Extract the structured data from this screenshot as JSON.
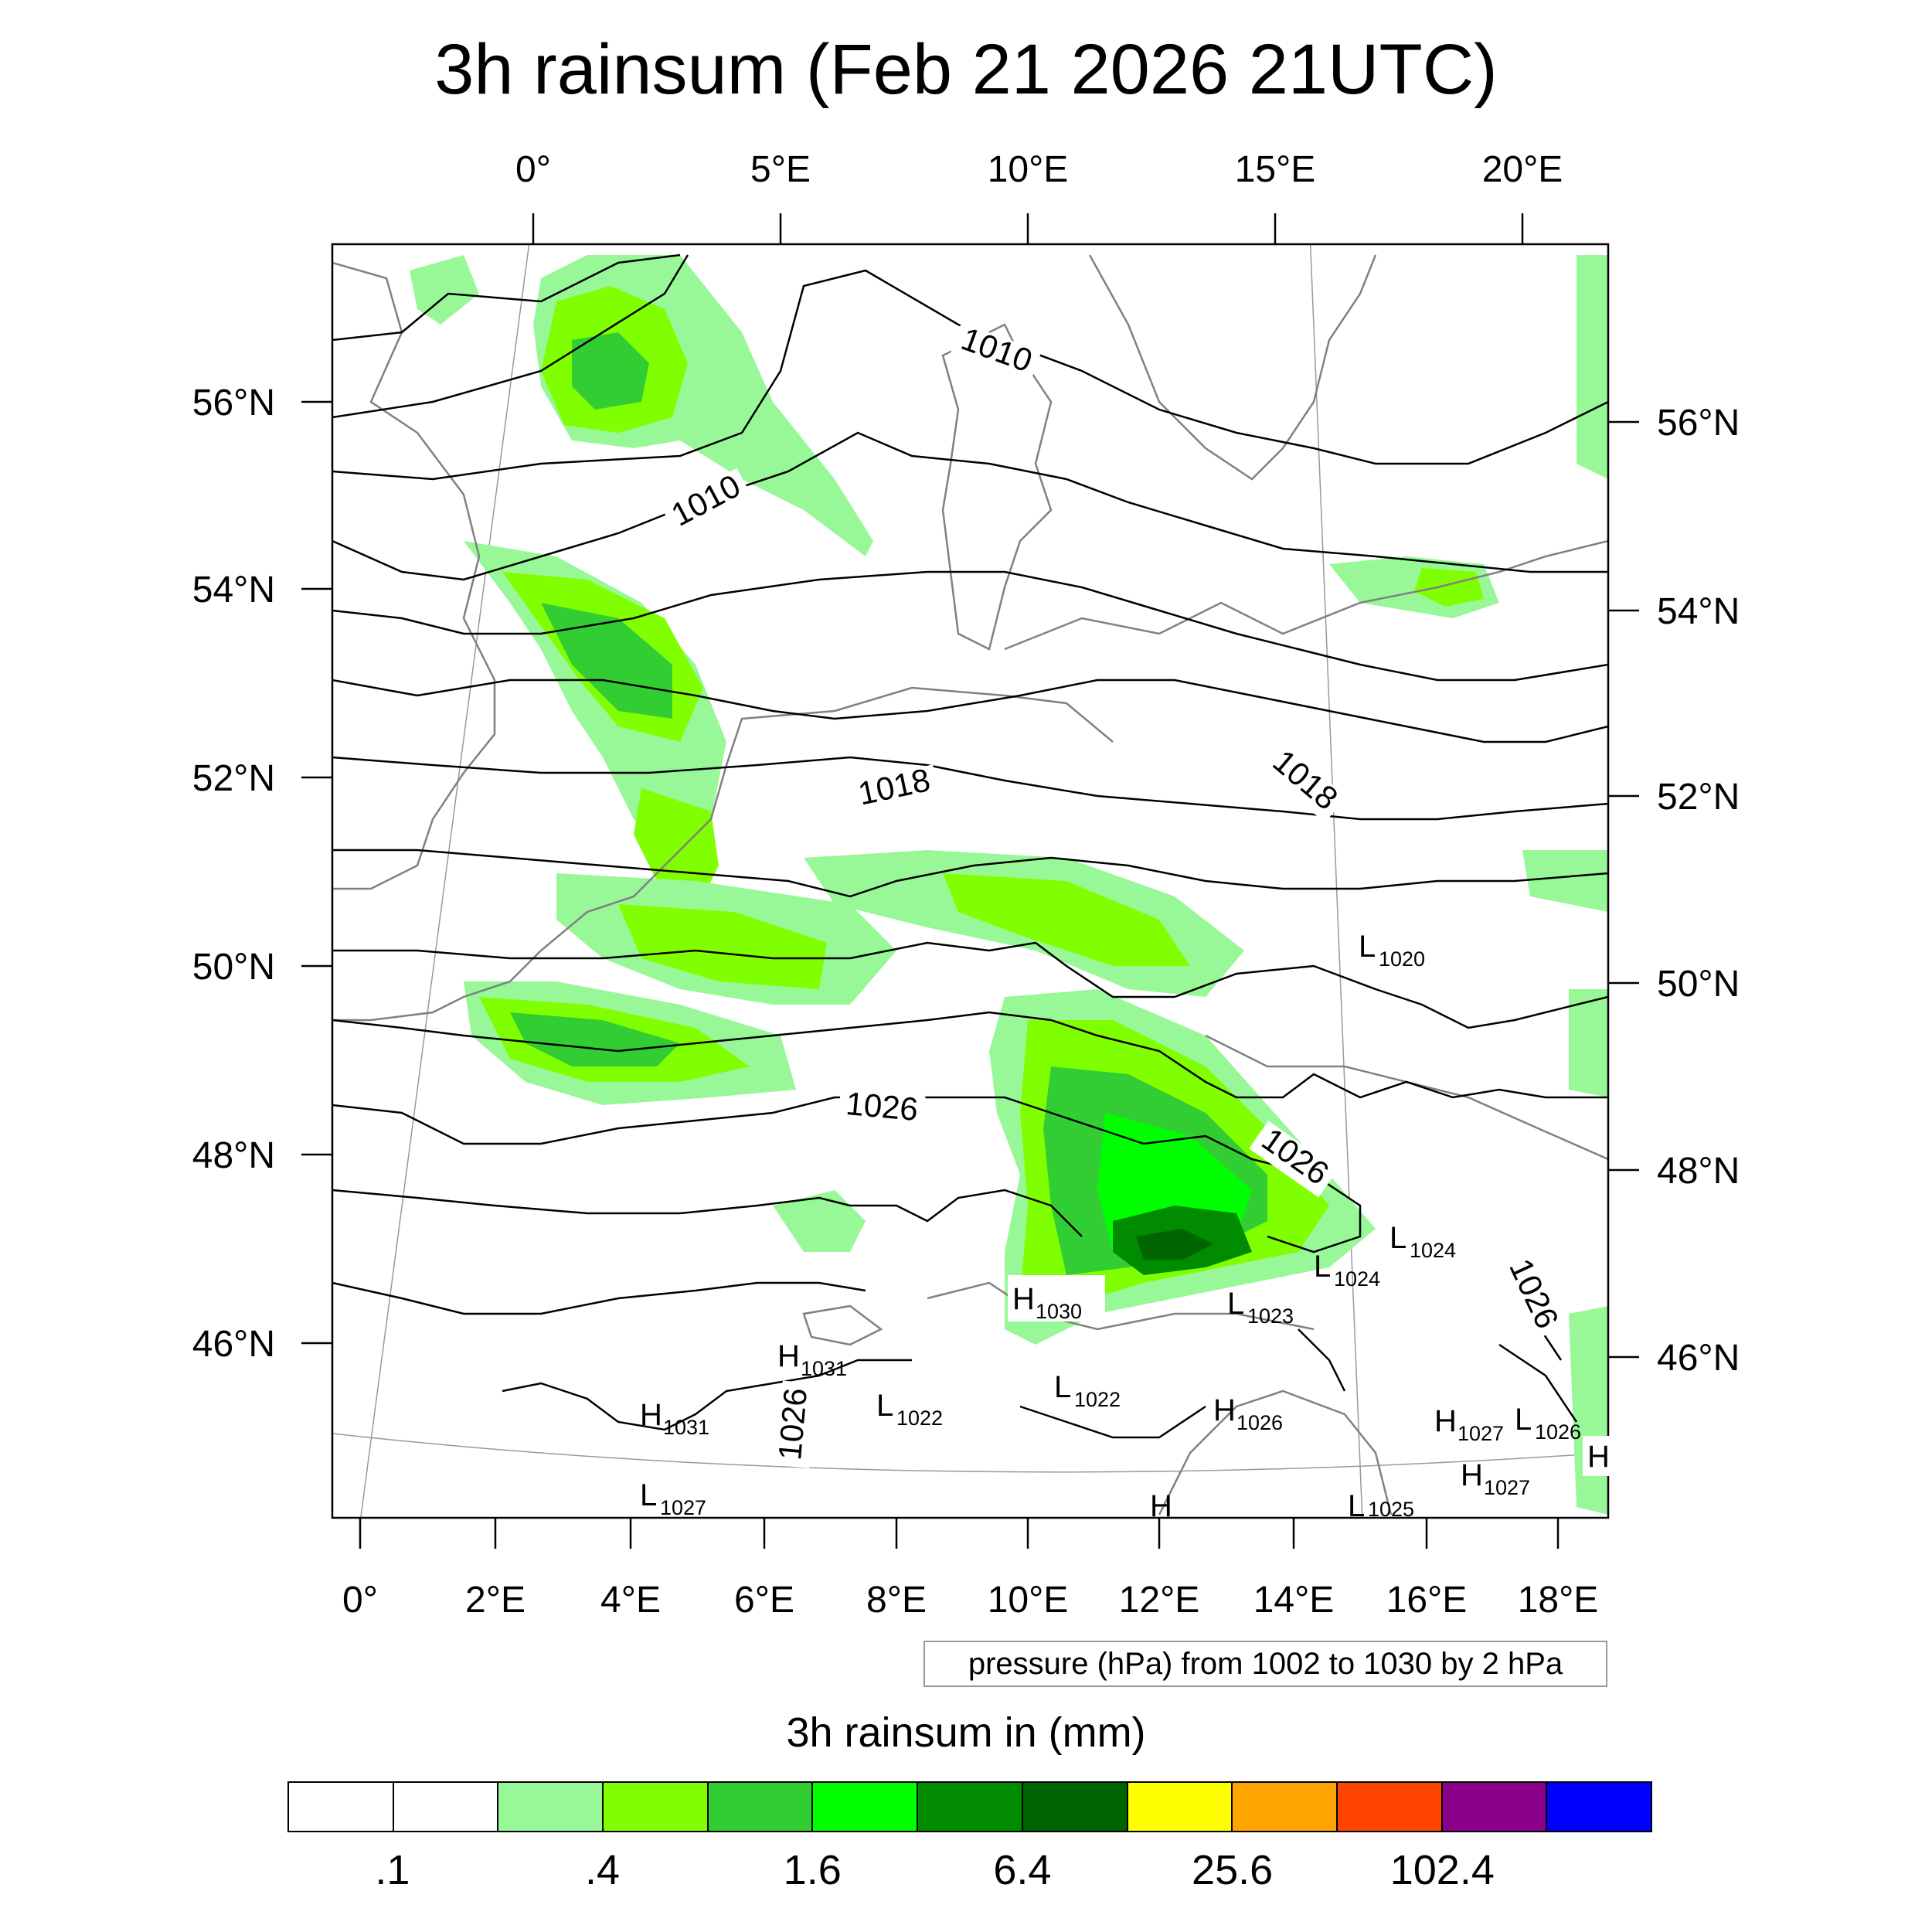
{
  "title": "3h rainsum (Feb 21 2026 21UTC)",
  "top_axis_labels": [
    "0°",
    "5°E",
    "10°E",
    "15°E",
    "20°E"
  ],
  "bottom_axis_labels": [
    "0°",
    "2°E",
    "4°E",
    "6°E",
    "8°E",
    "10°E",
    "12°E",
    "14°E",
    "16°E",
    "18°E"
  ],
  "left_axis_labels": [
    "56°N",
    "54°N",
    "52°N",
    "50°N",
    "48°N",
    "46°N"
  ],
  "right_axis_labels": [
    "56°N",
    "54°N",
    "52°N",
    "50°N",
    "48°N",
    "46°N"
  ],
  "isobar_labels": [
    "1010",
    "1010",
    "1018",
    "1018",
    "1026",
    "1026",
    "1026",
    "1026"
  ],
  "pressure_centers": [
    {
      "letter": "L",
      "value": "1020"
    },
    {
      "letter": "L",
      "value": "1024"
    },
    {
      "letter": "L",
      "value": "1024"
    },
    {
      "letter": "H",
      "value": "1030"
    },
    {
      "letter": "L",
      "value": "1023"
    },
    {
      "letter": "H",
      "value": "1031"
    },
    {
      "letter": "L",
      "value": "1022"
    },
    {
      "letter": "L",
      "value": "1022"
    },
    {
      "letter": "H",
      "value": "1031"
    },
    {
      "letter": "H",
      "value": "1026"
    },
    {
      "letter": "H",
      "value": "1027"
    },
    {
      "letter": "L",
      "value": "1026"
    },
    {
      "letter": "H",
      "value": ""
    },
    {
      "letter": "H",
      "value": "1027"
    },
    {
      "letter": "L",
      "value": "1027"
    },
    {
      "letter": "L",
      "value": "1025"
    },
    {
      "letter": "H",
      "value": ""
    }
  ],
  "contour_note": "pressure (hPa) from 1002 to 1030 by 2 hPa",
  "colorbar": {
    "title": "3h rainsum in (mm)",
    "colors": [
      "#ffffff",
      "#ffffff",
      "#98f898",
      "#80ff00",
      "#32cd32",
      "#00ff00",
      "#008b00",
      "#006400",
      "#ffff00",
      "#ffa500",
      "#ff4500",
      "#8b008b",
      "#0000ff"
    ],
    "labels": [
      ".1",
      ".4",
      "1.6",
      "6.4",
      "25.6",
      "102.4"
    ]
  },
  "colors": {
    "rain_light": "#98f898",
    "rain_lime": "#80ff00",
    "rain_mid": "#32cd32",
    "rain_bright": "#00ff00",
    "rain_dark": "#008b00",
    "rain_darker": "#006400",
    "isobar": "#000000",
    "coastline": "#808080"
  }
}
